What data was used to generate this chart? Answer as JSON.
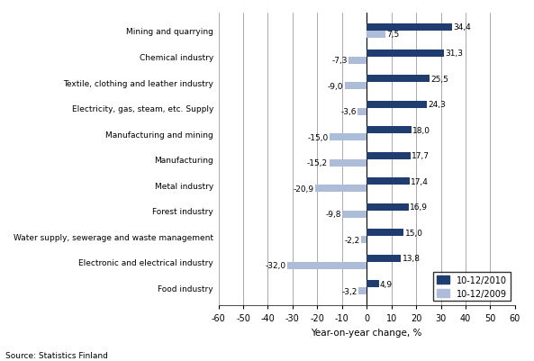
{
  "categories": [
    "Food industry",
    "Electronic and electrical industry",
    "Water supply, sewerage and waste management",
    "Forest industry",
    "Metal industry",
    "Manufacturing",
    "Manufacturing and mining",
    "Electricity, gas, steam, etc. Supply",
    "Textile, clothing and leather industry",
    "Chemical industry",
    "Mining and quarrying"
  ],
  "values_2010": [
    4.9,
    13.8,
    15.0,
    16.9,
    17.4,
    17.7,
    18.0,
    24.3,
    25.5,
    31.3,
    34.4
  ],
  "values_2009": [
    -3.2,
    -32.0,
    -2.2,
    -9.8,
    -20.9,
    -15.2,
    -15.0,
    -3.6,
    -9.0,
    -7.3,
    7.5
  ],
  "color_2010": "#1F3D6E",
  "color_2009": "#ADBCD8",
  "xlabel": "Year-on-year change, %",
  "legend_2010": "10-12/2010",
  "legend_2009": "10-12/2009",
  "xlim": [
    -60,
    60
  ],
  "xticks": [
    -60,
    -50,
    -40,
    -30,
    -20,
    -10,
    0,
    10,
    20,
    30,
    40,
    50,
    60
  ],
  "source": "Source: Statistics Finland",
  "bar_height": 0.28
}
